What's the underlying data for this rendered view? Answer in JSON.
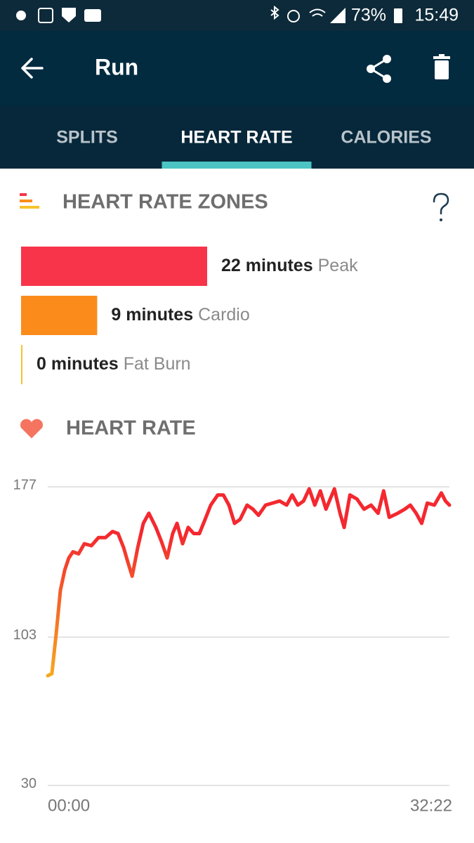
{
  "status_bar": {
    "battery": "73%",
    "time": "15:49"
  },
  "header": {
    "title": "Run"
  },
  "tabs": {
    "items": [
      "SPLITS",
      "HEART RATE",
      "CALORIES"
    ],
    "active": 1
  },
  "zones_section": {
    "title": "HEART RATE ZONES",
    "zones": [
      {
        "value": 22,
        "value_label": "22 minutes",
        "name": "Peak",
        "color": "#f7344a"
      },
      {
        "value": 9,
        "value_label": "9 minutes",
        "name": "Cardio",
        "color": "#fb8c1c"
      },
      {
        "value": 0,
        "value_label": "0 minutes",
        "name": "Fat Burn",
        "color": "#f6c22c"
      }
    ]
  },
  "chart_data": {
    "type": "line",
    "title": "HEART RATE",
    "ylim": [
      30,
      177
    ],
    "yticks": [
      30,
      103,
      177
    ],
    "xlim": [
      0,
      1942
    ],
    "xticks": [
      {
        "value": 0,
        "label": "00:00"
      },
      {
        "value": 1942,
        "label": "32:22"
      }
    ],
    "grid": true,
    "series": [
      {
        "name": "Heart rate",
        "colors": [
          "#f6a91f",
          "#f4282f"
        ],
        "x": [
          0,
          20,
          41,
          61,
          82,
          102,
          122,
          149,
          177,
          211,
          245,
          279,
          313,
          340,
          367,
          387,
          408,
          435,
          462,
          489,
          523,
          550,
          577,
          604,
          625,
          652,
          679,
          706,
          733,
          761,
          788,
          822,
          849,
          876,
          903,
          930,
          964,
          992,
          1019,
          1053,
          1087,
          1121,
          1155,
          1182,
          1209,
          1237,
          1264,
          1291,
          1318,
          1345,
          1386,
          1413,
          1433,
          1461,
          1495,
          1529,
          1563,
          1597,
          1624,
          1651,
          1692,
          1726,
          1753,
          1781,
          1808,
          1835,
          1869,
          1903,
          1923,
          1942
        ],
        "values": [
          84,
          85,
          105,
          126,
          136,
          142,
          145,
          144,
          149,
          148,
          152,
          152,
          155,
          154,
          147,
          140,
          133,
          147,
          159,
          164,
          157,
          150,
          142,
          154,
          159,
          149,
          157,
          154,
          154,
          161,
          168,
          173,
          173,
          168,
          159,
          161,
          168,
          166,
          163,
          168,
          169,
          170,
          168,
          173,
          168,
          170,
          176,
          168,
          175,
          166,
          176,
          164,
          157,
          173,
          171,
          166,
          168,
          164,
          175,
          162,
          164,
          166,
          168,
          164,
          159,
          169,
          168,
          174,
          170,
          168
        ]
      }
    ]
  }
}
